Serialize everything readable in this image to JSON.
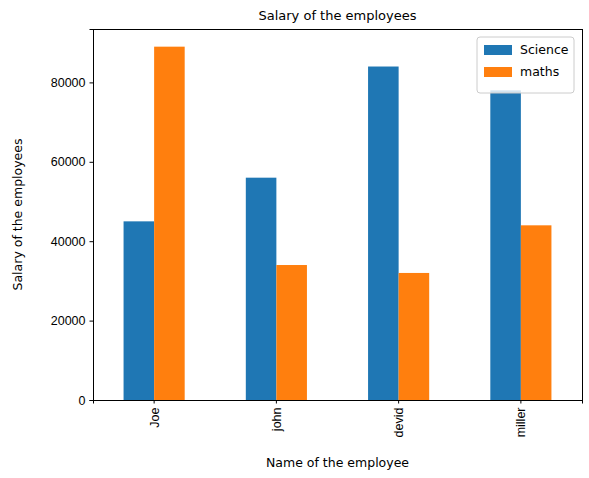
{
  "chart_data": {
    "type": "bar",
    "title": "Salary of the employees",
    "x_label": "Name of the employee",
    "y_label": "Salary of the employees",
    "categories": [
      "Joe",
      "john",
      "devid",
      "miller"
    ],
    "series": [
      {
        "name": "Science",
        "color": "#1f77b4",
        "values": [
          45000,
          56000,
          84000,
          78000
        ]
      },
      {
        "name": "maths",
        "color": "#ff7f0e",
        "values": [
          89000,
          34000,
          32000,
          44000
        ]
      }
    ],
    "ylim": [
      0,
      93450
    ],
    "yticks": [
      0,
      20000,
      40000,
      60000,
      80000
    ],
    "grid": false,
    "legend": "upper right"
  }
}
